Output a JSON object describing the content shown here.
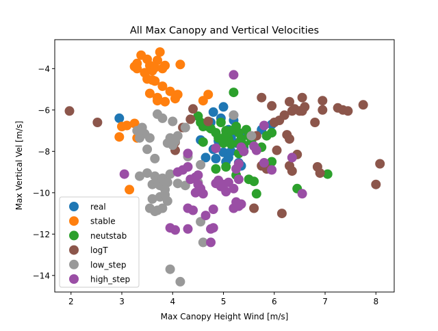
{
  "chart_data": {
    "type": "scatter",
    "title": "All Max Canopy and Vertical Velocities",
    "xlabel": "Max Canopy Height Wind [m/s]",
    "ylabel": "Max Vertical Vel [m/s]",
    "xlim": [
      1.68,
      8.36
    ],
    "ylim": [
      -14.8,
      -2.6
    ],
    "xticks": [
      2,
      3,
      4,
      5,
      6,
      7,
      8
    ],
    "yticks": [
      -14,
      -12,
      -10,
      -8,
      -6,
      -4
    ],
    "xtick_labels": [
      "2",
      "3",
      "4",
      "5",
      "6",
      "7",
      "8"
    ],
    "ytick_labels": [
      "−14",
      "−12",
      "−10",
      "−8",
      "−6",
      "−4"
    ],
    "grid": false,
    "legend_position": "lower-left",
    "series": [
      {
        "name": "real",
        "color": "#1f77b4",
        "points": [
          [
            2.95,
            -6.4
          ],
          [
            4.75,
            -6.6
          ],
          [
            4.8,
            -6.1
          ],
          [
            5.0,
            -5.85
          ],
          [
            5.2,
            -6.5
          ],
          [
            5.1,
            -6.95
          ],
          [
            5.15,
            -7.3
          ],
          [
            5.25,
            -7.6
          ],
          [
            4.9,
            -7.5
          ],
          [
            4.8,
            -7.9
          ],
          [
            5.0,
            -8.05
          ],
          [
            5.3,
            -8.55
          ],
          [
            4.55,
            -7.45
          ],
          [
            4.65,
            -8.3
          ],
          [
            4.85,
            -8.35
          ],
          [
            5.05,
            -8.5
          ],
          [
            5.25,
            -7.0
          ],
          [
            5.45,
            -7.15
          ],
          [
            5.55,
            -7.45
          ],
          [
            5.75,
            -6.95
          ],
          [
            5.95,
            -6.7
          ],
          [
            5.4,
            -7.8
          ],
          [
            5.1,
            -8.3
          ],
          [
            5.35,
            -8.7
          ],
          [
            4.95,
            -6.4
          ],
          [
            5.2,
            -6.25
          ],
          [
            5.15,
            -8.0
          ]
        ]
      },
      {
        "name": "stable",
        "color": "#ff7f0e",
        "points": [
          [
            3.25,
            -3.9
          ],
          [
            3.3,
            -3.75
          ],
          [
            3.38,
            -3.35
          ],
          [
            3.5,
            -3.55
          ],
          [
            3.55,
            -3.85
          ],
          [
            3.45,
            -4.2
          ],
          [
            3.6,
            -4.1
          ],
          [
            3.7,
            -3.6
          ],
          [
            3.75,
            -3.2
          ],
          [
            3.65,
            -3.95
          ],
          [
            3.8,
            -4.0
          ],
          [
            3.85,
            -3.85
          ],
          [
            3.5,
            -4.5
          ],
          [
            3.55,
            -5.2
          ],
          [
            3.65,
            -4.6
          ],
          [
            3.7,
            -5.4
          ],
          [
            3.8,
            -4.85
          ],
          [
            3.85,
            -5.6
          ],
          [
            3.95,
            -5.1
          ],
          [
            4.05,
            -5.45
          ],
          [
            4.1,
            -5.25
          ],
          [
            4.15,
            -3.8
          ],
          [
            3.6,
            -4.55
          ],
          [
            3.7,
            -5.55
          ],
          [
            3.0,
            -6.8
          ],
          [
            3.1,
            -6.75
          ],
          [
            3.25,
            -6.65
          ],
          [
            2.95,
            -7.3
          ],
          [
            3.3,
            -7.35
          ],
          [
            3.15,
            -9.85
          ],
          [
            4.6,
            -5.55
          ],
          [
            4.7,
            -5.25
          ],
          [
            3.3,
            -4.0
          ]
        ]
      },
      {
        "name": "neutstab",
        "color": "#2ca02c",
        "points": [
          [
            4.5,
            -6.3
          ],
          [
            4.55,
            -6.6
          ],
          [
            4.6,
            -6.8
          ],
          [
            4.75,
            -6.9
          ],
          [
            4.85,
            -7.1
          ],
          [
            4.95,
            -6.6
          ],
          [
            5.05,
            -7.0
          ],
          [
            5.1,
            -7.4
          ],
          [
            5.15,
            -7.65
          ],
          [
            5.2,
            -5.15
          ],
          [
            5.25,
            -6.8
          ],
          [
            5.3,
            -7.1
          ],
          [
            5.35,
            -7.4
          ],
          [
            5.4,
            -7.7
          ],
          [
            5.45,
            -6.95
          ],
          [
            5.5,
            -7.25
          ],
          [
            5.55,
            -7.5
          ],
          [
            5.3,
            -8.1
          ],
          [
            5.4,
            -8.0
          ],
          [
            5.0,
            -7.6
          ],
          [
            4.9,
            -7.35
          ],
          [
            4.6,
            -7.55
          ],
          [
            4.85,
            -8.85
          ],
          [
            5.05,
            -8.75
          ],
          [
            5.25,
            -9.15
          ],
          [
            5.5,
            -9.35
          ],
          [
            5.6,
            -9.45
          ],
          [
            5.65,
            -10.05
          ],
          [
            5.75,
            -7.8
          ],
          [
            5.85,
            -7.25
          ],
          [
            5.95,
            -7.1
          ],
          [
            5.95,
            -8.5
          ],
          [
            5.05,
            -7.2
          ],
          [
            5.15,
            -7.0
          ],
          [
            6.45,
            -9.8
          ],
          [
            7.05,
            -9.1
          ],
          [
            4.7,
            -6.8
          ],
          [
            5.3,
            -7.6
          ]
        ]
      },
      {
        "name": "logT",
        "color": "#8c564b",
        "points": [
          [
            1.97,
            -6.05
          ],
          [
            2.52,
            -6.6
          ],
          [
            4.05,
            -7.55
          ],
          [
            4.05,
            -7.95
          ],
          [
            4.2,
            -6.85
          ],
          [
            4.35,
            -6.45
          ],
          [
            4.4,
            -5.95
          ],
          [
            4.7,
            -6.55
          ],
          [
            5.65,
            -7.25
          ],
          [
            5.75,
            -5.4
          ],
          [
            5.95,
            -5.8
          ],
          [
            6.0,
            -6.6
          ],
          [
            6.05,
            -7.95
          ],
          [
            6.1,
            -6.5
          ],
          [
            6.2,
            -6.25
          ],
          [
            6.25,
            -7.2
          ],
          [
            6.3,
            -5.6
          ],
          [
            6.35,
            -6.05
          ],
          [
            6.4,
            -5.95
          ],
          [
            6.45,
            -8.15
          ],
          [
            6.5,
            -6.05
          ],
          [
            6.55,
            -5.4
          ],
          [
            6.6,
            -5.85
          ],
          [
            6.3,
            -8.7
          ],
          [
            6.35,
            -8.95
          ],
          [
            6.15,
            -11.0
          ],
          [
            5.75,
            -8.7
          ],
          [
            5.85,
            -8.85
          ],
          [
            5.6,
            -10.75
          ],
          [
            6.8,
            -6.6
          ],
          [
            6.85,
            -8.75
          ],
          [
            6.9,
            -9.05
          ],
          [
            6.95,
            -5.55
          ],
          [
            6.95,
            -6.0
          ],
          [
            7.25,
            -5.9
          ],
          [
            7.35,
            -6.0
          ],
          [
            7.45,
            -6.05
          ],
          [
            7.75,
            -5.75
          ],
          [
            8.0,
            -9.6
          ],
          [
            8.08,
            -8.6
          ],
          [
            6.3,
            -7.4
          ],
          [
            6.55,
            -6.05
          ]
        ]
      },
      {
        "name": "low_step",
        "color": "#999999",
        "points": [
          [
            3.3,
            -7.0
          ],
          [
            3.4,
            -6.85
          ],
          [
            3.45,
            -7.15
          ],
          [
            3.35,
            -7.35
          ],
          [
            3.55,
            -7.35
          ],
          [
            3.5,
            -7.9
          ],
          [
            3.65,
            -8.35
          ],
          [
            3.7,
            -6.2
          ],
          [
            3.8,
            -6.4
          ],
          [
            3.9,
            -7.6
          ],
          [
            3.95,
            -7.35
          ],
          [
            4.0,
            -7.7
          ],
          [
            4.05,
            -7.5
          ],
          [
            4.1,
            -7.25
          ],
          [
            4.25,
            -6.85
          ],
          [
            4.0,
            -6.55
          ],
          [
            4.3,
            -8.25
          ],
          [
            4.55,
            -8.65
          ],
          [
            3.35,
            -9.2
          ],
          [
            3.5,
            -9.05
          ],
          [
            3.6,
            -9.6
          ],
          [
            3.65,
            -9.2
          ],
          [
            3.7,
            -9.4
          ],
          [
            3.75,
            -9.65
          ],
          [
            3.8,
            -9.3
          ],
          [
            3.9,
            -9.5
          ],
          [
            3.95,
            -9.1
          ],
          [
            3.85,
            -9.85
          ],
          [
            3.75,
            -10.2
          ],
          [
            3.6,
            -10.3
          ],
          [
            3.7,
            -10.85
          ],
          [
            3.8,
            -10.75
          ],
          [
            3.9,
            -10.4
          ],
          [
            3.65,
            -10.9
          ],
          [
            4.25,
            -9.65
          ],
          [
            4.55,
            -11.4
          ],
          [
            4.6,
            -12.4
          ],
          [
            3.95,
            -13.7
          ],
          [
            4.15,
            -14.3
          ],
          [
            5.2,
            -6.25
          ],
          [
            5.55,
            -7.25
          ],
          [
            4.5,
            -9.5
          ],
          [
            4.1,
            -9.55
          ],
          [
            3.85,
            -10.1
          ],
          [
            3.55,
            -10.75
          ]
        ]
      },
      {
        "name": "high_step",
        "color": "#9a4ea5",
        "points": [
          [
            5.2,
            -4.3
          ],
          [
            4.1,
            -9.0
          ],
          [
            4.2,
            -8.9
          ],
          [
            4.3,
            -8.1
          ],
          [
            4.3,
            -8.75
          ],
          [
            4.35,
            -9.35
          ],
          [
            4.45,
            -9.25
          ],
          [
            4.5,
            -9.6
          ],
          [
            4.5,
            -9.15
          ],
          [
            4.55,
            -9.8
          ],
          [
            4.45,
            -10.0
          ],
          [
            4.6,
            -10.05
          ],
          [
            4.3,
            -10.75
          ],
          [
            4.4,
            -10.85
          ],
          [
            4.65,
            -11.1
          ],
          [
            4.8,
            -10.8
          ],
          [
            4.85,
            -9.55
          ],
          [
            4.95,
            -9.7
          ],
          [
            4.9,
            -9.4
          ],
          [
            5.05,
            -9.95
          ],
          [
            5.1,
            -9.5
          ],
          [
            5.2,
            -9.8
          ],
          [
            5.3,
            -9.35
          ],
          [
            5.25,
            -8.85
          ],
          [
            5.3,
            -8.6
          ],
          [
            5.35,
            -7.8
          ],
          [
            5.4,
            -8.0
          ],
          [
            5.6,
            -7.75
          ],
          [
            5.65,
            -7.95
          ],
          [
            5.8,
            -8.55
          ],
          [
            5.95,
            -8.9
          ],
          [
            4.8,
            -11.7
          ],
          [
            4.75,
            -11.75
          ],
          [
            4.75,
            -12.4
          ],
          [
            3.95,
            -11.7
          ],
          [
            4.05,
            -11.8
          ],
          [
            4.3,
            -11.75
          ],
          [
            5.2,
            -10.75
          ],
          [
            5.25,
            -10.45
          ],
          [
            5.35,
            -10.55
          ],
          [
            5.8,
            -6.75
          ],
          [
            6.35,
            -8.3
          ],
          [
            6.55,
            -10.05
          ],
          [
            3.05,
            -9.1
          ],
          [
            4.85,
            -7.85
          ],
          [
            5.0,
            -9.6
          ],
          [
            5.3,
            -10.65
          ]
        ]
      }
    ]
  }
}
